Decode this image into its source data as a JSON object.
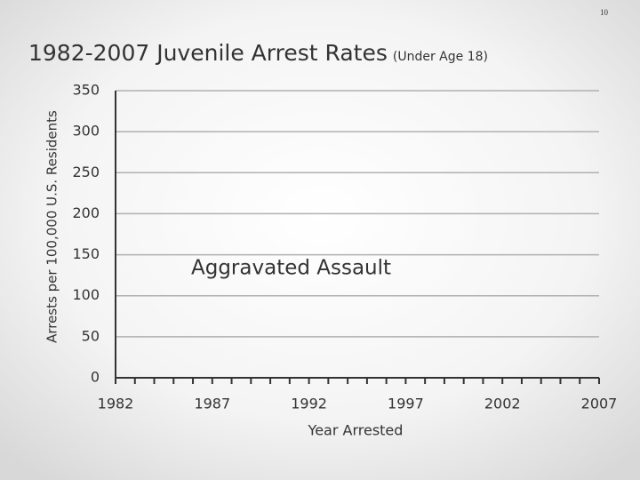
{
  "page_number": "10",
  "chart_data": {
    "type": "line",
    "title": "1982-2007 Juvenile Arrest Rates",
    "subtitle": "(Under Age 18)",
    "annotation": "Aggravated Assault",
    "y_label": "Arrests per 100,000 U.S. Residents",
    "x_label": "Year Arrested",
    "xlim": [
      1982,
      2007
    ],
    "xticks": [
      1982,
      1987,
      1992,
      1997,
      2002,
      2007
    ],
    "xminorticks": [
      1982,
      1983,
      1984,
      1985,
      1986,
      1987,
      1988,
      1989,
      1990,
      1991,
      1992,
      1993,
      1994,
      1995,
      1996,
      1997,
      1998,
      1999,
      2000,
      2001,
      2002,
      2003,
      2004,
      2005,
      2006,
      2007
    ],
    "ylim": [
      0,
      350
    ],
    "yticks": [
      0,
      50,
      100,
      150,
      200,
      250,
      300,
      350
    ],
    "grid": true,
    "grid_color": "#b0b0b0",
    "axis_color": "#333333"
  }
}
